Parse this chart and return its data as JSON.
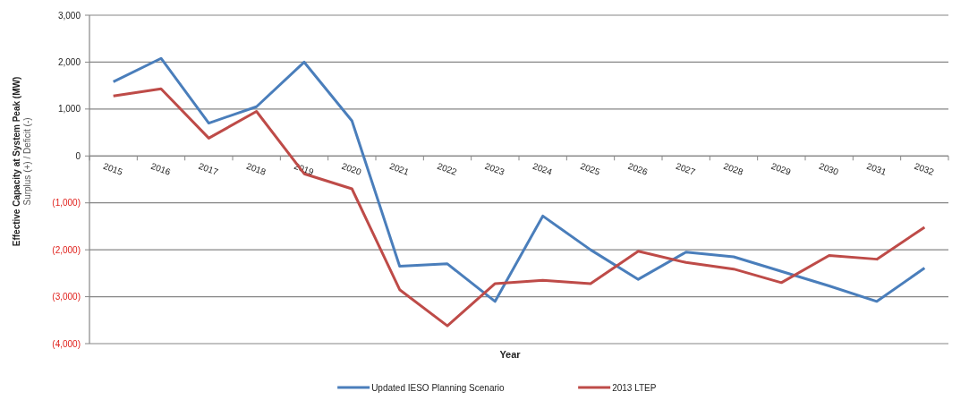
{
  "chart_data": {
    "type": "line",
    "xlabel": "Year",
    "ylabel": "Effective  Capacity at System Peak (MW)\nSurplus (+) / Deficit (-)",
    "categories": [
      "2015",
      "2016",
      "2017",
      "2018",
      "2019",
      "2020",
      "2021",
      "2022",
      "2023",
      "2024",
      "2025",
      "2026",
      "2027",
      "2028",
      "2029",
      "2030",
      "2031",
      "2032"
    ],
    "series": [
      {
        "name": "Updated IESO Planning Scenario",
        "color": "#4a7ebb",
        "values": [
          1580,
          2080,
          700,
          1050,
          2000,
          750,
          -2350,
          -2300,
          -3100,
          -1280,
          -2000,
          -2630,
          -2050,
          -2150,
          -2460,
          -2770,
          -3100,
          -2390
        ]
      },
      {
        "name": "2013 LTEP",
        "color": "#be4b48",
        "values": [
          1280,
          1430,
          380,
          950,
          -380,
          -700,
          -2850,
          -3620,
          -2720,
          -2650,
          -2720,
          -2030,
          -2270,
          -2410,
          -2700,
          -2120,
          -2200,
          -1520
        ]
      }
    ],
    "ylim": [
      -4000,
      3000
    ],
    "yticks": [
      {
        "value": -4000,
        "label": "(4,000)"
      },
      {
        "value": -3000,
        "label": "(3,000)"
      },
      {
        "value": -2000,
        "label": "(2,000)"
      },
      {
        "value": -1000,
        "label": "(1,000)"
      },
      0,
      {
        "value": 1000,
        "label": "1,000"
      },
      {
        "value": 2000,
        "label": "2,000"
      },
      {
        "value": 3000,
        "label": "3,000"
      }
    ],
    "grid": "y",
    "legend": "bottom",
    "marker": "none",
    "line_style": "solid"
  }
}
